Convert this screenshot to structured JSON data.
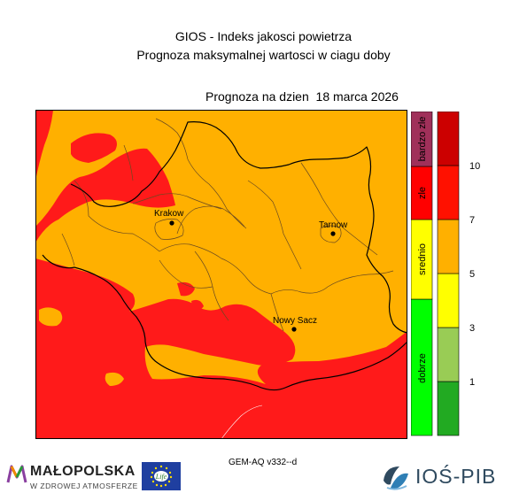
{
  "title": "GIOS - Indeks jakosci powietrza",
  "subtitle": "Prognoza maksymalnej wartosci w ciagu doby",
  "forecast_date": "Prognoza na dzien  18 marca 2026",
  "cities": [
    {
      "name": "Krakow"
    },
    {
      "name": "Tarnow"
    },
    {
      "name": "Nowy Sacz"
    }
  ],
  "legend": {
    "categories": [
      {
        "label": "dobrze",
        "color": "#00ff00"
      },
      {
        "label": "srednio",
        "color": "#ffff00"
      },
      {
        "label": "zle",
        "color": "#ff0000"
      },
      {
        "label": "bardzo zle",
        "color": "#a0305a"
      }
    ],
    "scale_colors": [
      "#22aa22",
      "#99cc55",
      "#ffff00",
      "#ffb000",
      "#ff1100",
      "#cc0000"
    ],
    "ticks": [
      "1",
      "3",
      "5",
      "7",
      "10"
    ]
  },
  "map_colors": {
    "orange": "#ffb000",
    "red": "#ff1a1a"
  },
  "model_label": "GEM-AQ v332--d",
  "logos": {
    "malopolska_name": "MAŁOPOLSKA",
    "malopolska_sub": "W ZDROWEJ ATMOSFERZE",
    "life_text": "Life",
    "ios_name": "IOŚ-PIB"
  }
}
